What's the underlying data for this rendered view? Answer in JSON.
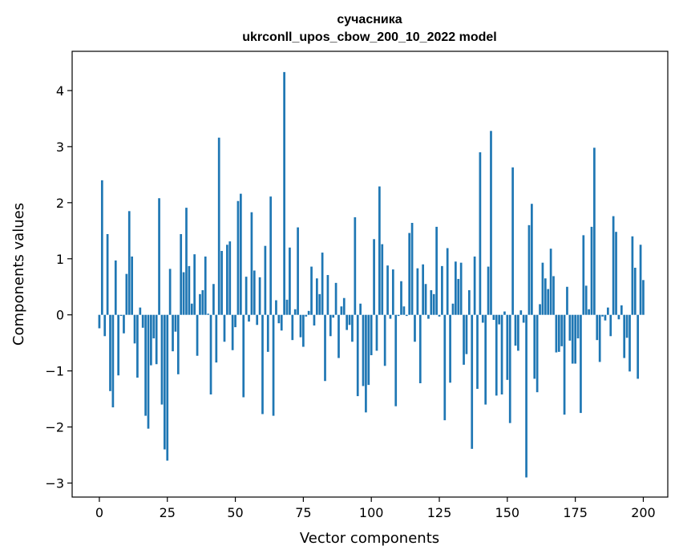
{
  "chart_data": {
    "type": "bar",
    "title_line1": "сучасника",
    "title_line2": "ukrconll_upos_cbow_200_10_2022 model",
    "xlabel": "Vector components",
    "ylabel": "Components values",
    "xlim": [
      -10,
      209
    ],
    "ylim": [
      -3.25,
      4.7
    ],
    "xticks": [
      0,
      25,
      50,
      75,
      100,
      125,
      150,
      175,
      200
    ],
    "yticks": [
      -3,
      -2,
      -1,
      0,
      1,
      2,
      3,
      4
    ],
    "ytick_labels": [
      "−3",
      "−2",
      "−1",
      "0",
      "1",
      "2",
      "3",
      "4"
    ],
    "grid": false,
    "bar_color": "#1f77b4",
    "values": [
      -0.24,
      2.4,
      -0.38,
      1.44,
      -1.36,
      -1.65,
      0.97,
      -1.08,
      -0.02,
      -0.33,
      0.73,
      1.85,
      1.04,
      -0.51,
      -1.12,
      0.13,
      -0.23,
      -1.8,
      -2.03,
      -0.9,
      -0.42,
      -0.88,
      2.08,
      -1.6,
      -2.4,
      -2.6,
      0.82,
      -0.65,
      -0.3,
      -1.06,
      1.44,
      0.76,
      1.91,
      0.87,
      0.2,
      1.08,
      -0.73,
      0.37,
      0.44,
      1.04,
      0.02,
      -1.42,
      0.55,
      -0.85,
      3.16,
      1.14,
      -0.48,
      1.25,
      1.31,
      -0.63,
      -0.22,
      2.03,
      2.16,
      -1.47,
      0.68,
      -0.12,
      1.83,
      0.79,
      -0.18,
      0.67,
      -1.77,
      1.23,
      -0.66,
      2.11,
      -1.8,
      0.26,
      -0.15,
      -0.28,
      4.33,
      0.27,
      1.2,
      -0.45,
      0.1,
      1.56,
      -0.4,
      -0.57,
      -0.03,
      0.07,
      0.86,
      -0.19,
      0.65,
      0.37,
      1.11,
      -1.18,
      0.71,
      -0.38,
      -0.05,
      0.57,
      -0.77,
      0.15,
      0.3,
      -0.27,
      -0.18,
      -0.48,
      1.74,
      -1.45,
      0.2,
      -1.27,
      -1.74,
      -1.25,
      -0.72,
      1.35,
      -0.64,
      2.29,
      1.26,
      -0.91,
      0.88,
      -0.07,
      0.81,
      -1.63,
      -0.02,
      0.6,
      0.15,
      -0.02,
      1.46,
      1.64,
      -0.48,
      0.83,
      -1.22,
      0.9,
      0.55,
      -0.07,
      0.44,
      0.37,
      1.57,
      -0.03,
      0.87,
      -1.88,
      1.19,
      -1.21,
      0.2,
      0.95,
      0.64,
      0.93,
      -0.89,
      -0.7,
      0.44,
      -2.39,
      1.04,
      -1.32,
      2.9,
      -0.14,
      -1.6,
      0.86,
      3.28,
      -0.09,
      -1.44,
      -0.17,
      -1.42,
      0.06,
      -1.16,
      -1.93,
      2.63,
      -0.55,
      -0.64,
      0.08,
      -0.14,
      -2.9,
      1.6,
      1.98,
      -1.14,
      -1.38,
      0.19,
      0.93,
      0.65,
      0.46,
      1.18,
      0.69,
      -0.67,
      -0.66,
      -0.56,
      -1.78,
      0.5,
      -0.46,
      -0.87,
      -0.87,
      -0.42,
      -1.75,
      1.42,
      0.52,
      0.1,
      1.57,
      2.98,
      -0.45,
      -0.84,
      -0.03,
      -0.1,
      0.13,
      -0.38,
      1.76,
      1.48,
      -0.08,
      0.17,
      -0.77,
      -0.41,
      -1.01,
      1.4,
      0.84,
      -1.14,
      1.25,
      0.62
    ]
  }
}
